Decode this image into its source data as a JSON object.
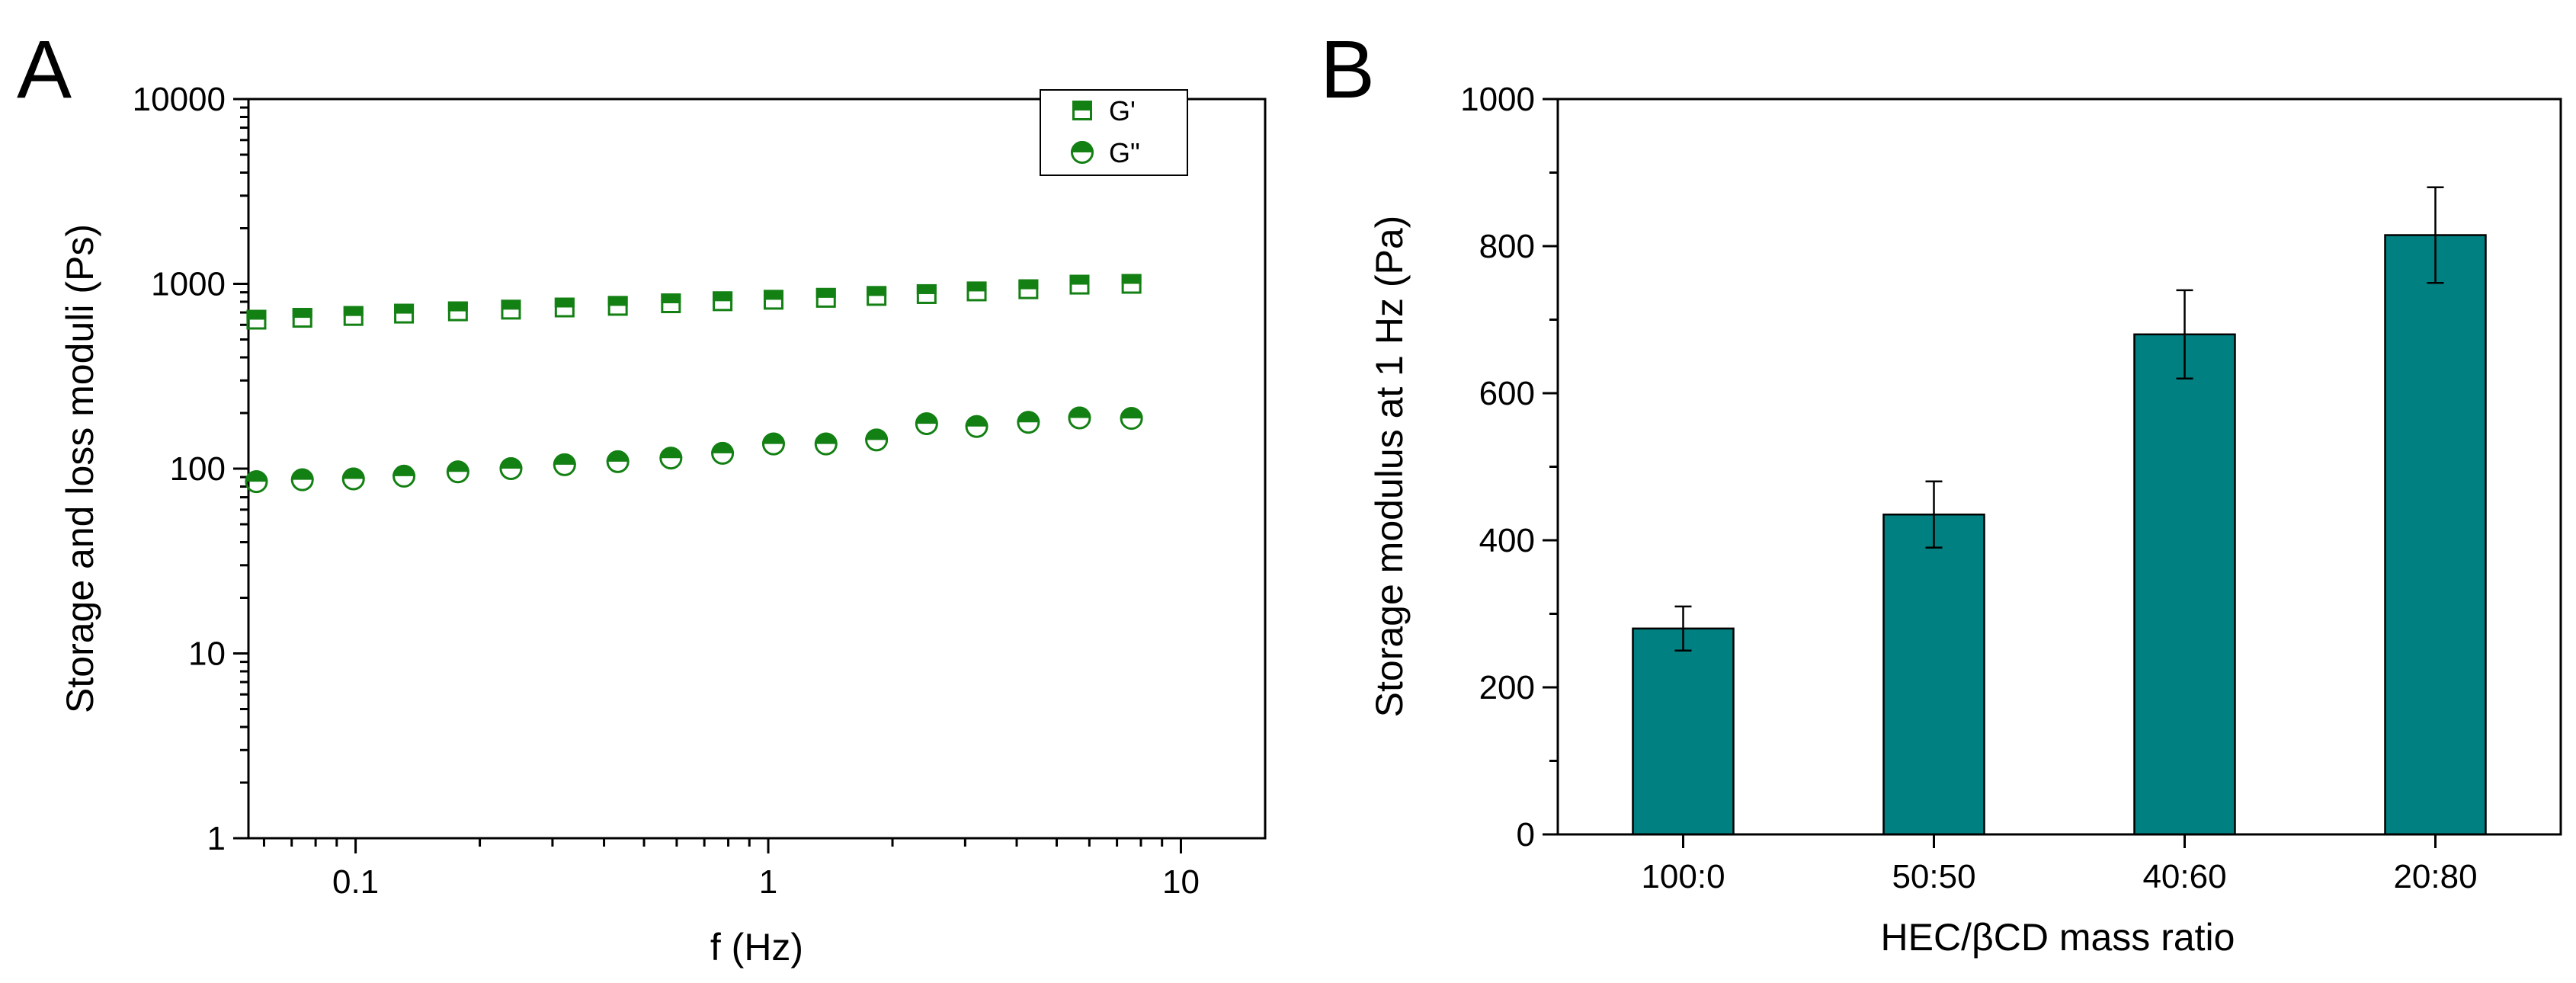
{
  "chart_data": [
    {
      "type": "scatter",
      "panel_label": "A",
      "xlabel": "f (Hz)",
      "ylabel": "Storage and loss moduli (Ps)",
      "x_scale": "log",
      "y_scale": "log",
      "xlim": [
        0.055,
        16
      ],
      "ylim": [
        1,
        10000
      ],
      "x_ticks": [
        {
          "value": 0.1,
          "label": "0.1"
        },
        {
          "value": 1,
          "label": "1"
        },
        {
          "value": 10,
          "label": "10"
        }
      ],
      "y_ticks": [
        {
          "value": 1,
          "label": "1"
        },
        {
          "value": 10,
          "label": "10"
        },
        {
          "value": 100,
          "label": "100"
        },
        {
          "value": 1000,
          "label": "1000"
        },
        {
          "value": 10000,
          "label": "10000"
        }
      ],
      "grid": false,
      "legend_position": "top-right",
      "series": [
        {
          "name": "G'",
          "marker": "half-filled-square",
          "color": "#138013",
          "x": [
            0.0575,
            0.0743,
            0.0988,
            0.131,
            0.177,
            0.238,
            0.321,
            0.432,
            0.581,
            0.775,
            1.03,
            1.38,
            1.83,
            2.42,
            3.2,
            4.27,
            5.68,
            7.59
          ],
          "y": [
            640,
            655,
            670,
            690,
            710,
            725,
            745,
            760,
            785,
            805,
            820,
            840,
            860,
            880,
            910,
            935,
            990,
            1000
          ]
        },
        {
          "name": "G\"",
          "marker": "half-filled-circle",
          "color": "#138013",
          "x": [
            0.0575,
            0.0743,
            0.0988,
            0.131,
            0.177,
            0.238,
            0.321,
            0.432,
            0.581,
            0.775,
            1.03,
            1.38,
            1.83,
            2.42,
            3.2,
            4.27,
            5.68,
            7.59
          ],
          "y": [
            85,
            87,
            88,
            91,
            96,
            100,
            105,
            109,
            114,
            121,
            136,
            136,
            143,
            175,
            169,
            178,
            188,
            187
          ]
        }
      ]
    },
    {
      "type": "bar",
      "panel_label": "B",
      "xlabel": "HEC/βCD mass ratio",
      "ylabel": "Storage modulus at 1 Hz (Pa)",
      "categories": [
        "100:0",
        "50:50",
        "40:60",
        "20:80"
      ],
      "values": [
        280,
        435,
        680,
        815
      ],
      "errors": [
        30,
        45,
        60,
        65
      ],
      "ylim": [
        0,
        1000
      ],
      "y_ticks": [
        0,
        200,
        400,
        600,
        800,
        1000
      ],
      "y_minor_step": 100,
      "grid": false,
      "bar_color": "#008080"
    }
  ]
}
